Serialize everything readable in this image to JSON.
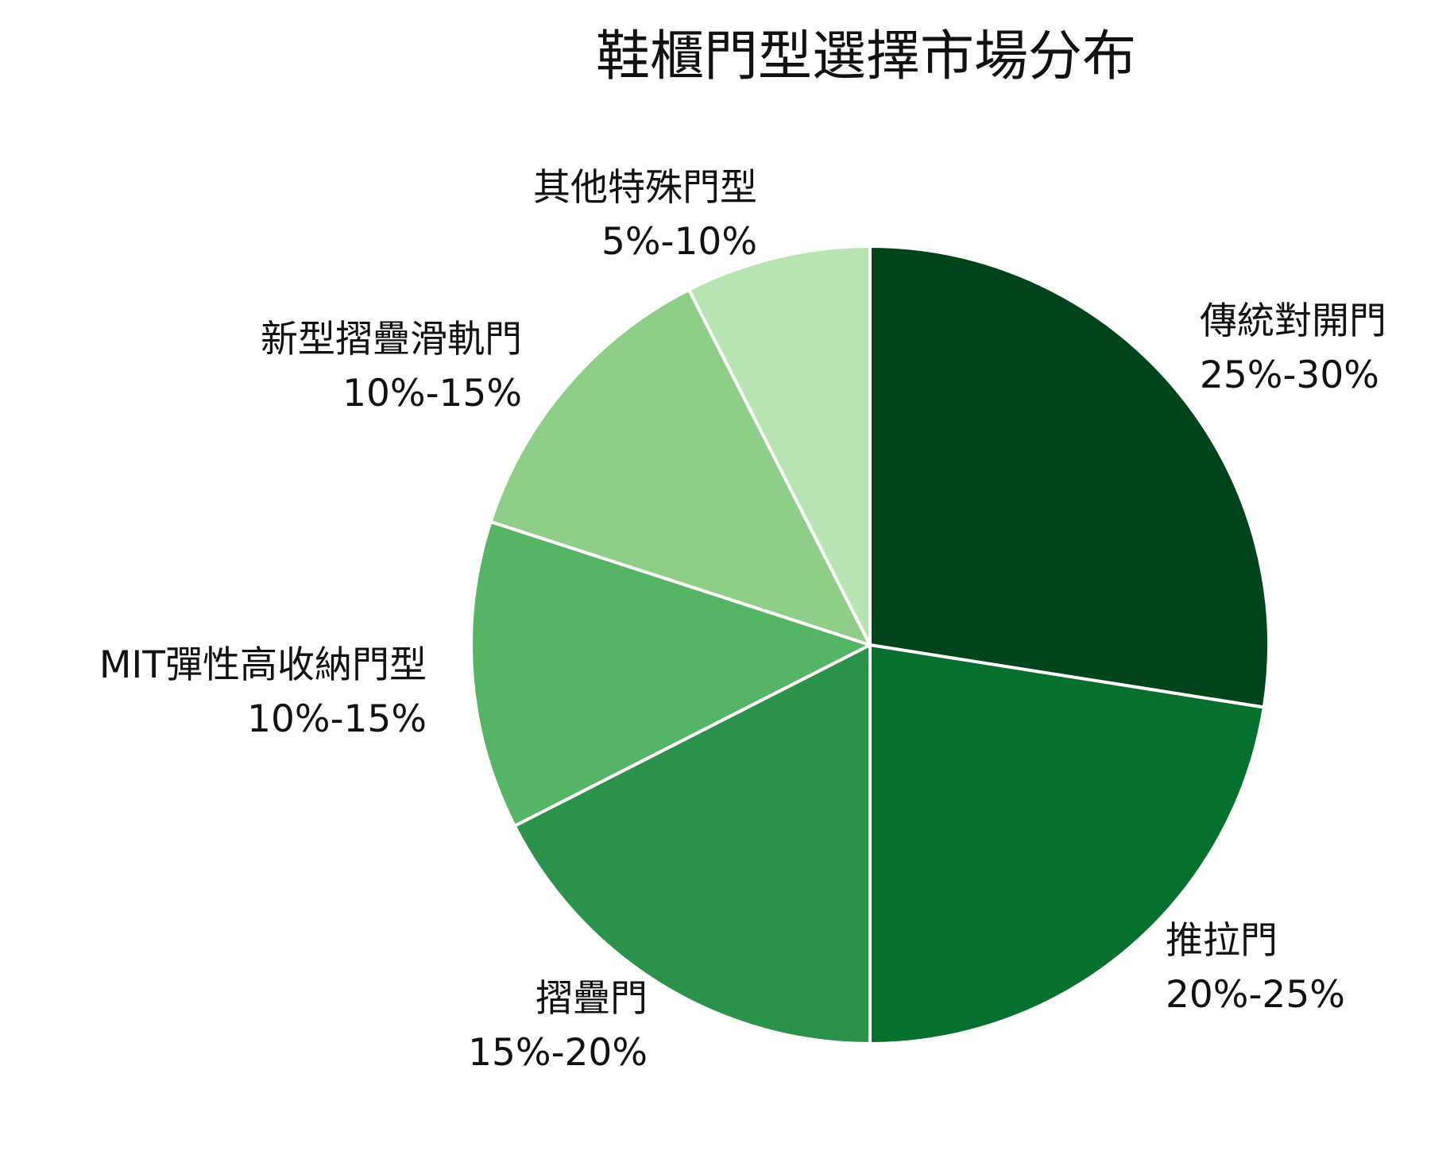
{
  "chart_data": {
    "type": "pie",
    "title": "鞋櫃門型選擇市場分布",
    "legend": "none",
    "slices": [
      {
        "name": "傳統對開門",
        "range_label": "25%-30%",
        "value": 27.5,
        "color": "#00441b"
      },
      {
        "name": "推拉門",
        "range_label": "20%-25%",
        "value": 22.5,
        "color": "#06702f"
      },
      {
        "name": "摺疊門",
        "range_label": "15%-20%",
        "value": 17.5,
        "color": "#2b924b"
      },
      {
        "name": "MIT彈性高收納門型",
        "range_label": "10%-15%",
        "value": 12.5,
        "color": "#56b467"
      },
      {
        "name": "新型摺疊滑軌門",
        "range_label": "10%-15%",
        "value": 12.5,
        "color": "#8fce89"
      },
      {
        "name": "其他特殊門型",
        "range_label": "5%-10%",
        "value": 7.5,
        "color": "#b8e3b2"
      }
    ]
  }
}
